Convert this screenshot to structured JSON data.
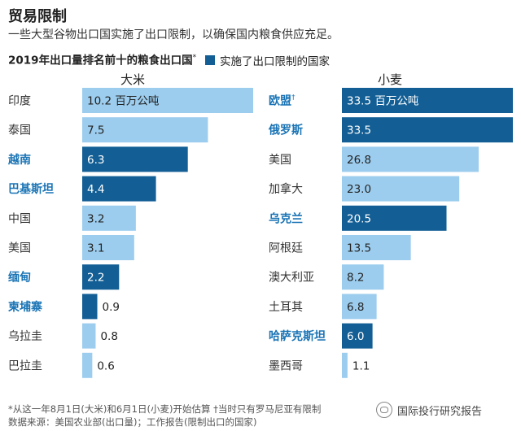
{
  "title": "贸易限制",
  "subtitle": "一些大型谷物出口国实施了出口限制，以确保国内粮食供应充足。",
  "section_heading": "2019年出口量排名前十的粮食出口国",
  "section_heading_mark": "*",
  "legend_label": "实施了出口限制的国家",
  "colors": {
    "restricted": "#135f95",
    "normal": "#9ccdee",
    "restricted_label": "#1a74b5",
    "normal_label": "#333333"
  },
  "chart_data": [
    {
      "type": "bar",
      "title": "大米",
      "unit_suffix": " 百万公吨",
      "xlim": [
        0,
        10.2
      ],
      "categories": [
        "印度",
        "泰国",
        "越南",
        "巴基斯坦",
        "中国",
        "美国",
        "缅甸",
        "柬埔寨",
        "乌拉圭",
        "巴拉圭"
      ],
      "values": [
        10.2,
        7.5,
        6.3,
        4.4,
        3.2,
        3.1,
        2.2,
        0.9,
        0.8,
        0.6
      ],
      "value_labels": [
        "10.2",
        "7.5",
        "6.3",
        "4.4",
        "3.2",
        "3.1",
        "2.2",
        "0.9",
        "0.8",
        "0.6"
      ],
      "restricted": [
        false,
        false,
        true,
        true,
        false,
        false,
        true,
        true,
        false,
        false
      ],
      "category_marks": [
        "",
        "",
        "",
        "",
        "",
        "",
        "",
        "",
        "",
        ""
      ]
    },
    {
      "type": "bar",
      "title": "小麦",
      "unit_suffix": " 百万公吨",
      "xlim": [
        0,
        33.5
      ],
      "categories": [
        "欧盟",
        "俄罗斯",
        "美国",
        "加拿大",
        "乌克兰",
        "阿根廷",
        "澳大利亚",
        "土耳其",
        "哈萨克斯坦",
        "墨西哥"
      ],
      "values": [
        33.5,
        33.5,
        26.8,
        23.0,
        20.5,
        13.5,
        8.2,
        6.8,
        6.0,
        1.1
      ],
      "value_labels": [
        "33.5",
        "33.5",
        "26.8",
        "23.0",
        "20.5",
        "13.5",
        "8.2",
        "6.8",
        "6.0",
        "1.1"
      ],
      "restricted": [
        true,
        true,
        false,
        false,
        true,
        false,
        false,
        false,
        true,
        false
      ],
      "category_marks": [
        "†",
        "",
        "",
        "",
        "",
        "",
        "",
        "",
        "",
        ""
      ]
    }
  ],
  "footnote_line1": "*从这一年8月1日(大米)和6月1日(小麦)开始估算 †当时只有罗马尼亚有限制",
  "footnote_line2": "数据来源：美国农业部(出口量)；工作报告(限制出口的国家)",
  "watermark": "国际投行研究报告"
}
